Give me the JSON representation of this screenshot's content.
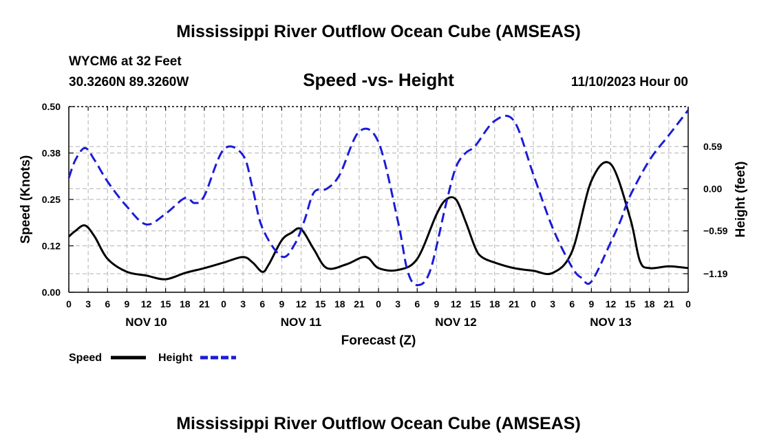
{
  "page": {
    "title": "Mississippi River Outflow Ocean Cube (AMSEAS)",
    "footer_title": "Mississippi River Outflow Ocean Cube (AMSEAS)",
    "station_line": "WYCM6 at 32 Feet",
    "coords_line": "30.3260N  89.3260W",
    "date_line": "11/10/2023 Hour 00"
  },
  "chart_data": {
    "type": "line",
    "title": "Speed -vs- Height",
    "xlabel": "Forecast (Z)",
    "ylabel": "Speed (Knots)",
    "y2label": "Height (feet)",
    "xlim": [
      0,
      96
    ],
    "ylim": [
      0,
      0.5
    ],
    "y2lim": [
      -1.45,
      1.15
    ],
    "grid": true,
    "x_tick_values": [
      0,
      3,
      6,
      9,
      12,
      15,
      18,
      21,
      24,
      27,
      30,
      33,
      36,
      39,
      42,
      45,
      48,
      51,
      54,
      57,
      60,
      63,
      66,
      69,
      72,
      75,
      78,
      81,
      84,
      87,
      90,
      93,
      96
    ],
    "x_tick_labels": [
      "0",
      "3",
      "6",
      "9",
      "12",
      "15",
      "18",
      "21",
      "0",
      "3",
      "6",
      "9",
      "12",
      "15",
      "18",
      "21",
      "0",
      "3",
      "6",
      "9",
      "12",
      "15",
      "18",
      "21",
      "0",
      "3",
      "6",
      "9",
      "12",
      "15",
      "18",
      "21",
      "0"
    ],
    "date_labels": [
      {
        "x": 12,
        "label": "NOV 10"
      },
      {
        "x": 36,
        "label": "NOV 11"
      },
      {
        "x": 60,
        "label": "NOV 12"
      },
      {
        "x": 84,
        "label": "NOV 13"
      }
    ],
    "y_ticks": [
      {
        "value": 0.0,
        "label": "0.00"
      },
      {
        "value": 0.125,
        "label": "0.12"
      },
      {
        "value": 0.25,
        "label": "0.25"
      },
      {
        "value": 0.375,
        "label": "0.38"
      },
      {
        "value": 0.5,
        "label": "0.50"
      }
    ],
    "y2_ticks": [
      {
        "value": 0.59,
        "label": "0.59"
      },
      {
        "value": 0.0,
        "label": "0.00"
      },
      {
        "value": -0.59,
        "label": "−0.59"
      },
      {
        "value": -1.19,
        "label": "−1.19"
      }
    ],
    "series": [
      {
        "name": "Speed",
        "axis": "left",
        "color": "#000000",
        "dash": "solid",
        "x": [
          0,
          1,
          2.5,
          4,
          6,
          9,
          12,
          15,
          18,
          21,
          24,
          27,
          28.5,
          30,
          31,
          33,
          34.5,
          36,
          38,
          40,
          43,
          46,
          48,
          51,
          54,
          57,
          58.5,
          60,
          61.5,
          63,
          64,
          66,
          69,
          72,
          75,
          78,
          81,
          84,
          87,
          88.5,
          90,
          93,
          96
        ],
        "values": [
          0.15,
          0.165,
          0.18,
          0.15,
          0.09,
          0.055,
          0.045,
          0.035,
          0.052,
          0.065,
          0.08,
          0.095,
          0.08,
          0.055,
          0.075,
          0.14,
          0.16,
          0.17,
          0.115,
          0.065,
          0.075,
          0.095,
          0.065,
          0.06,
          0.09,
          0.21,
          0.25,
          0.25,
          0.19,
          0.12,
          0.095,
          0.08,
          0.065,
          0.058,
          0.052,
          0.11,
          0.3,
          0.345,
          0.2,
          0.085,
          0.065,
          0.07,
          0.065
        ]
      },
      {
        "name": "Height",
        "axis": "right",
        "color": "#1b1bd6",
        "dash": "dashed",
        "x": [
          0,
          1,
          2.5,
          4,
          6,
          9,
          12,
          15,
          18,
          19.5,
          21,
          24,
          27,
          28.5,
          30,
          33,
          35,
          36.5,
          38,
          40,
          42,
          45,
          48,
          51,
          52.5,
          54,
          56,
          58.5,
          60,
          61.5,
          63,
          66,
          69,
          72,
          75,
          78,
          79.5,
          81,
          84,
          85.5,
          87,
          90,
          93,
          96
        ],
        "values": [
          0.15,
          0.4,
          0.57,
          0.4,
          0.1,
          -0.25,
          -0.5,
          -0.35,
          -0.13,
          -0.2,
          -0.1,
          0.55,
          0.47,
          0.0,
          -0.55,
          -0.95,
          -0.78,
          -0.45,
          -0.05,
          0.0,
          0.2,
          0.8,
          0.65,
          -0.45,
          -1.15,
          -1.35,
          -1.15,
          -0.2,
          0.3,
          0.5,
          0.6,
          0.95,
          0.95,
          0.2,
          -0.55,
          -1.1,
          -1.25,
          -1.3,
          -0.75,
          -0.45,
          -0.1,
          0.4,
          0.75,
          1.1
        ]
      }
    ]
  },
  "legend": {
    "speed_label": "Speed",
    "height_label": "Height"
  }
}
